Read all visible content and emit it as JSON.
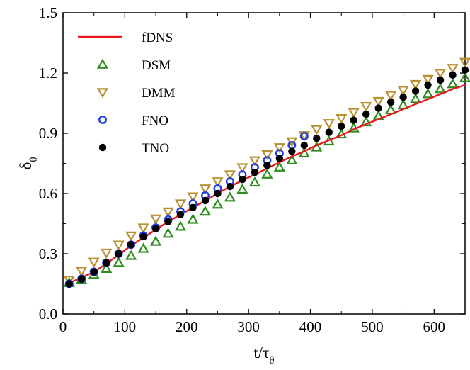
{
  "chart_data": {
    "type": "scatter",
    "xlabel": "t/τ",
    "xlabel_sub": "θ",
    "ylabel": "δ",
    "ylabel_sub": "θ",
    "xlim": [
      0,
      650
    ],
    "ylim": [
      0,
      1.5
    ],
    "xticks": [
      0,
      100,
      200,
      300,
      400,
      500,
      600
    ],
    "yticks": [
      0.0,
      0.3,
      0.6,
      0.9,
      1.2,
      1.5
    ],
    "xtick_labels": [
      "0",
      "100",
      "200",
      "300",
      "400",
      "500",
      "600"
    ],
    "ytick_labels": [
      "0.0",
      "0.3",
      "0.6",
      "0.9",
      "1.2",
      "1.5"
    ],
    "legend_position": "top-left",
    "series": [
      {
        "name": "fDNS",
        "kind": "line",
        "color": "#e41a1c",
        "x": [
          10,
          30,
          50,
          70,
          90,
          110,
          130,
          150,
          170,
          190,
          210,
          230,
          250,
          270,
          290,
          310,
          330,
          350,
          370,
          390,
          410,
          430,
          450,
          470,
          490,
          510,
          530,
          550,
          570,
          590,
          610,
          630,
          650
        ],
        "y": [
          0.155,
          0.18,
          0.21,
          0.25,
          0.295,
          0.34,
          0.38,
          0.42,
          0.46,
          0.495,
          0.53,
          0.565,
          0.6,
          0.635,
          0.665,
          0.695,
          0.725,
          0.755,
          0.785,
          0.81,
          0.84,
          0.865,
          0.89,
          0.92,
          0.945,
          0.97,
          0.995,
          1.02,
          1.045,
          1.07,
          1.095,
          1.12,
          1.14
        ]
      },
      {
        "name": "DSM",
        "kind": "marker",
        "marker": "triangle-up",
        "color": "#2e8b1e",
        "x": [
          10,
          30,
          50,
          70,
          90,
          110,
          130,
          150,
          170,
          190,
          210,
          230,
          250,
          270,
          290,
          310,
          330,
          350,
          370,
          390,
          410,
          430,
          450,
          470,
          490,
          510,
          530,
          550,
          570,
          590,
          610,
          630,
          650
        ],
        "y": [
          0.155,
          0.17,
          0.195,
          0.225,
          0.255,
          0.29,
          0.325,
          0.36,
          0.4,
          0.435,
          0.47,
          0.51,
          0.545,
          0.58,
          0.62,
          0.655,
          0.695,
          0.73,
          0.765,
          0.8,
          0.83,
          0.86,
          0.895,
          0.925,
          0.955,
          0.985,
          1.015,
          1.04,
          1.07,
          1.095,
          1.12,
          1.145,
          1.175
        ]
      },
      {
        "name": "DMM",
        "kind": "marker",
        "marker": "triangle-down",
        "color": "#b8902f",
        "x": [
          10,
          30,
          50,
          70,
          90,
          110,
          130,
          150,
          170,
          190,
          210,
          230,
          250,
          270,
          290,
          310,
          330,
          350,
          370,
          390,
          410,
          430,
          450,
          470,
          490,
          510,
          530,
          550,
          570,
          590,
          610,
          630,
          650
        ],
        "y": [
          0.17,
          0.215,
          0.26,
          0.305,
          0.345,
          0.39,
          0.43,
          0.475,
          0.51,
          0.55,
          0.585,
          0.625,
          0.66,
          0.695,
          0.73,
          0.765,
          0.795,
          0.83,
          0.86,
          0.89,
          0.92,
          0.95,
          0.975,
          1.005,
          1.035,
          1.06,
          1.09,
          1.115,
          1.145,
          1.17,
          1.2,
          1.225,
          1.255
        ]
      },
      {
        "name": "FNO",
        "kind": "marker",
        "marker": "circle-open",
        "color": "#1f3fe0",
        "x": [
          10,
          30,
          50,
          70,
          90,
          110,
          130,
          150,
          170,
          190,
          210,
          230,
          250,
          270,
          290,
          310,
          330,
          350,
          370,
          390
        ],
        "y": [
          0.15,
          0.175,
          0.21,
          0.255,
          0.3,
          0.345,
          0.39,
          0.43,
          0.47,
          0.51,
          0.55,
          0.59,
          0.625,
          0.66,
          0.695,
          0.73,
          0.765,
          0.8,
          0.84,
          0.885
        ]
      },
      {
        "name": "TNO",
        "kind": "marker",
        "marker": "circle-filled",
        "color": "#000000",
        "x": [
          10,
          30,
          50,
          70,
          90,
          110,
          130,
          150,
          170,
          190,
          210,
          230,
          250,
          270,
          290,
          310,
          330,
          350,
          370,
          390,
          410,
          430,
          450,
          470,
          490,
          510,
          530,
          550,
          570,
          590,
          610,
          630,
          650
        ],
        "y": [
          0.15,
          0.175,
          0.21,
          0.255,
          0.3,
          0.345,
          0.385,
          0.425,
          0.46,
          0.495,
          0.53,
          0.565,
          0.6,
          0.635,
          0.67,
          0.705,
          0.74,
          0.775,
          0.81,
          0.84,
          0.875,
          0.905,
          0.935,
          0.965,
          0.995,
          1.025,
          1.055,
          1.08,
          1.11,
          1.14,
          1.165,
          1.19,
          1.215
        ]
      }
    ]
  }
}
